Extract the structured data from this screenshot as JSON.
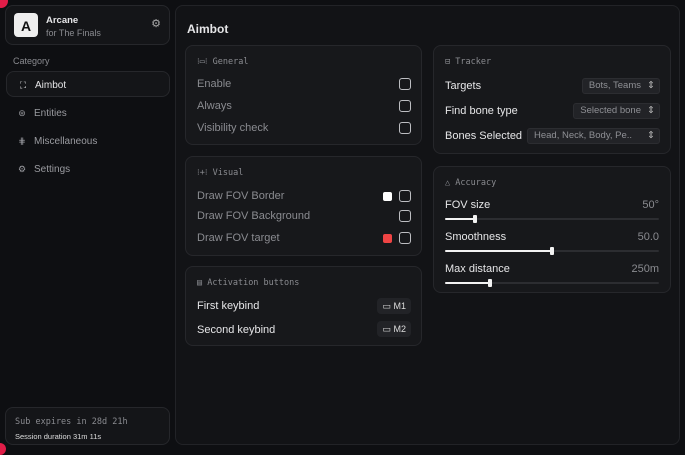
{
  "app": {
    "name": "Arcane",
    "subtitle": "for The Finals",
    "logo_letter": "A"
  },
  "sidebar": {
    "category_label": "Category",
    "items": [
      {
        "label": "Aimbot",
        "icon": "crosshair-icon",
        "active": true
      },
      {
        "label": "Entities",
        "icon": "entities-icon"
      },
      {
        "label": "Miscellaneous",
        "icon": "sliders-icon"
      },
      {
        "label": "Settings",
        "icon": "gear-icon"
      }
    ],
    "sub_expires": "Sub expires in 28d 21h",
    "session": "Session duration 31m 11s"
  },
  "main": {
    "title": "Aimbot",
    "general": {
      "title": "General",
      "items": [
        {
          "label": "Enable",
          "checked": false
        },
        {
          "label": "Always",
          "checked": false
        },
        {
          "label": "Visibility check",
          "checked": false
        }
      ]
    },
    "visual": {
      "title": "Visual",
      "items": [
        {
          "label": "Draw FOV Border",
          "color": "#ffffff",
          "checked": false
        },
        {
          "label": "Draw FOV Background",
          "checked": false
        },
        {
          "label": "Draw FOV target",
          "color": "#ef4444",
          "checked": false
        }
      ]
    },
    "activation": {
      "title": "Activation buttons",
      "items": [
        {
          "label": "First keybind",
          "key": "M1"
        },
        {
          "label": "Second keybind",
          "key": "M2"
        }
      ]
    },
    "tracker": {
      "title": "Tracker",
      "items": [
        {
          "label": "Targets",
          "value": "Bots, Teams"
        },
        {
          "label": "Find bone type",
          "value": "Selected bone"
        },
        {
          "label": "Bones Selected",
          "value": "Head, Neck, Body, Pe.."
        }
      ]
    },
    "accuracy": {
      "title": "Accuracy",
      "items": [
        {
          "label": "FOV size",
          "value": "50°",
          "fraction": 0.14
        },
        {
          "label": "Smoothness",
          "value": "50.0",
          "fraction": 0.5
        },
        {
          "label": "Max distance",
          "value": "250m",
          "fraction": 0.21
        }
      ]
    }
  },
  "colors": {
    "accent": "#e11d48",
    "background": "#0e0f12",
    "card": "#17181b"
  }
}
